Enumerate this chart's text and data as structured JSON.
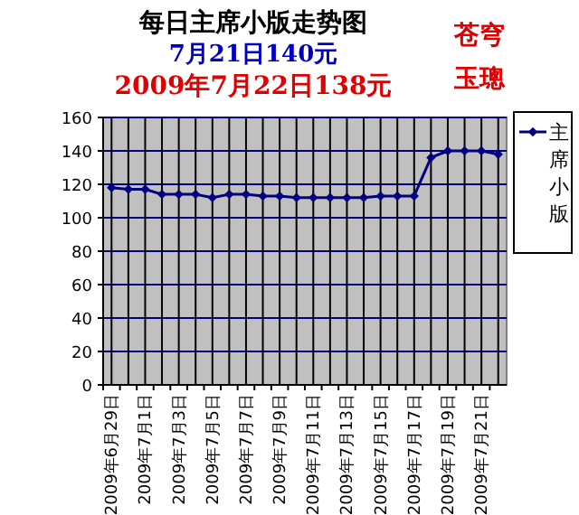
{
  "chart_data": {
    "type": "line",
    "title": "每日主席小版走势图",
    "subtitle": "7月21日140元",
    "annotations": [
      "2009年7月22日138元",
      "苍穹",
      "玉璁"
    ],
    "categories": [
      "2009年6月29日",
      null,
      "2009年7月1日",
      null,
      "2009年7月3日",
      null,
      "2009年7月5日",
      null,
      "2009年7月7日",
      null,
      "2009年7月9日",
      null,
      "2009年7月11日",
      null,
      "2009年7月13日",
      null,
      "2009年7月15日",
      null,
      "2009年7月17日",
      null,
      "2009年7月19日",
      null,
      "2009年7月21日",
      null
    ],
    "series": [
      {
        "name": "主席小版",
        "color": "#000080",
        "values": [
          118,
          117,
          117,
          114,
          114,
          114,
          112,
          114,
          114,
          113,
          113,
          112,
          112,
          112,
          112,
          112,
          113,
          113,
          113,
          136,
          140,
          140,
          140,
          138
        ]
      }
    ],
    "ylim": [
      0,
      160
    ],
    "yticks": [
      0,
      20,
      40,
      60,
      80,
      100,
      120,
      140,
      160
    ],
    "grid": true,
    "legend": "right",
    "marker": "diamond"
  }
}
